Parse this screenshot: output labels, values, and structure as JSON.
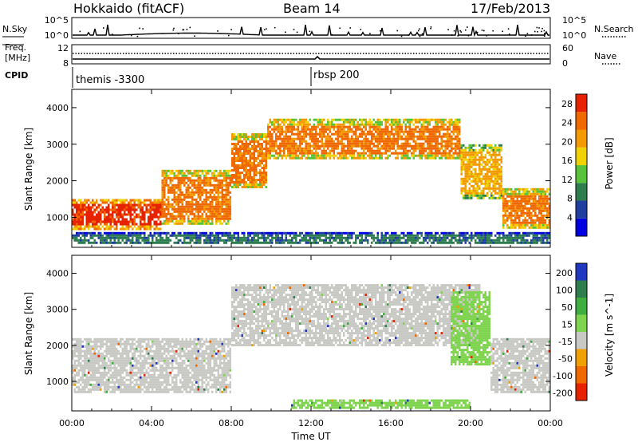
{
  "header": {
    "station": "Hokkaido (fitACF)",
    "beam": "Beam 14",
    "date": "17/Feb/2013"
  },
  "sky_panel": {
    "left_label": "N.Sky",
    "left_ticks": [
      "10^5",
      "10^0"
    ],
    "right_label": "N.Search",
    "right_ticks": [
      "10^5",
      "10^0"
    ]
  },
  "freq_panel": {
    "left_label_1": "Freq.",
    "left_label_2": "[MHz]",
    "left_ticks": [
      "12",
      "8"
    ],
    "right_label": "Nave",
    "right_ticks": [
      "60",
      "0"
    ]
  },
  "cpid_panel": {
    "label": "CPID",
    "modes": [
      {
        "text": "themis -3300",
        "start": "00:00"
      },
      {
        "text": "rbsp 200",
        "start": "11:30"
      }
    ]
  },
  "x_axis": {
    "label": "Time UT",
    "ticks": [
      "00:00",
      "04:00",
      "08:00",
      "12:00",
      "16:00",
      "20:00",
      "00:00"
    ],
    "range_hours": [
      0,
      24
    ]
  },
  "chart_data": [
    {
      "type": "heatmap",
      "name": "power",
      "ylabel": "Slant Range [km]",
      "y_ticks": [
        1000,
        2000,
        3000,
        4000
      ],
      "ylim": [
        180,
        4500
      ],
      "xlim_hours": [
        0,
        24
      ],
      "colorbar": {
        "label": "Power [dB]",
        "ticks": [
          4,
          8,
          12,
          16,
          20,
          24,
          28
        ],
        "range": [
          0,
          30
        ],
        "colors": [
          "#0000e0",
          "#1f3fa0",
          "#2e7d4f",
          "#57c23a",
          "#f0d200",
          "#f39a00",
          "#f06800",
          "#e62200"
        ]
      },
      "scatter_regions": [
        {
          "t_start": 0.0,
          "t_end": 4.5,
          "range_lo": 700,
          "range_hi": 1500,
          "level": 27
        },
        {
          "t_start": 4.5,
          "t_end": 8.0,
          "range_lo": 800,
          "range_hi": 2300,
          "level": 26
        },
        {
          "t_start": 8.0,
          "t_end": 9.8,
          "range_lo": 1800,
          "range_hi": 3300,
          "level": 25
        },
        {
          "t_start": 9.8,
          "t_end": 19.5,
          "range_lo": 2600,
          "range_hi": 3700,
          "level": 24
        },
        {
          "t_start": 19.5,
          "t_end": 21.6,
          "range_lo": 1500,
          "range_hi": 3000,
          "level": 22
        },
        {
          "t_start": 21.6,
          "t_end": 24.0,
          "range_lo": 700,
          "range_hi": 1800,
          "level": 25
        },
        {
          "t_start": 0.0,
          "t_end": 24.0,
          "range_lo": 300,
          "range_hi": 600,
          "level": 9
        }
      ]
    },
    {
      "type": "heatmap",
      "name": "velocity",
      "ylabel": "Slant Range [km]",
      "y_ticks": [
        1000,
        2000,
        3000,
        4000
      ],
      "ylim": [
        180,
        4500
      ],
      "xlim_hours": [
        0,
        24
      ],
      "colorbar": {
        "label": "Velocity [m s^-1]",
        "ticks": [
          200,
          100,
          50,
          15,
          -15,
          -50,
          -100,
          -200
        ],
        "colors": [
          "#2038c0",
          "#2e7d4f",
          "#3fae3f",
          "#7fd44f",
          "#c8c8c4",
          "#f0a000",
          "#f06800",
          "#e62200"
        ]
      },
      "scatter_regions": [
        {
          "t_start": 0.0,
          "t_end": 8.0,
          "range_lo": 700,
          "range_hi": 2200,
          "level": "-15..15"
        },
        {
          "t_start": 8.0,
          "t_end": 20.5,
          "range_lo": 2000,
          "range_hi": 3700,
          "level": "-15..15"
        },
        {
          "t_start": 19.0,
          "t_end": 21.0,
          "range_lo": 1500,
          "range_hi": 3500,
          "level": "15..50"
        },
        {
          "t_start": 21.0,
          "t_end": 24.0,
          "range_lo": 700,
          "range_hi": 2200,
          "level": "-15..15"
        },
        {
          "t_start": 11.0,
          "t_end": 20.0,
          "range_lo": 250,
          "range_hi": 500,
          "level": "15..50"
        }
      ]
    }
  ]
}
